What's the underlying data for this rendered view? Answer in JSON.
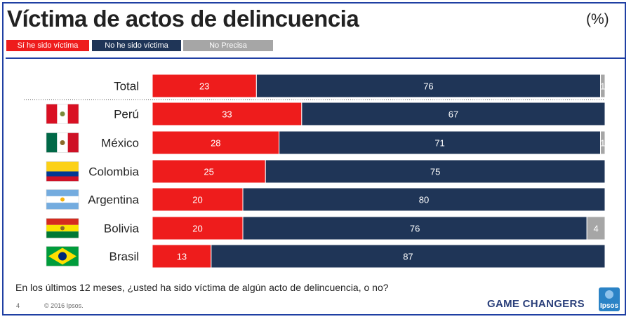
{
  "header": {
    "title": "Víctima de actos de delincuencia",
    "unit": "(%)"
  },
  "legend": [
    {
      "label": "Sí he sido víctima",
      "color": "#ee1c1c"
    },
    {
      "label": "No he sido víctima",
      "color": "#1f3557"
    },
    {
      "label": "No Precisa",
      "color": "#a6a6a6"
    }
  ],
  "chart_data": {
    "type": "bar",
    "orientation": "horizontal",
    "stacked": true,
    "categories": [
      "Total",
      "Perú",
      "México",
      "Colombia",
      "Argentina",
      "Bolivia",
      "Brasil"
    ],
    "series": [
      {
        "name": "Sí he sido víctima",
        "color": "#ee1c1c",
        "values": [
          23,
          33,
          28,
          25,
          20,
          20,
          13
        ]
      },
      {
        "name": "No he sido víctima",
        "color": "#1f3557",
        "values": [
          76,
          67,
          71,
          75,
          80,
          76,
          87
        ]
      },
      {
        "name": "No Precisa",
        "color": "#a6a6a6",
        "values": [
          1,
          0,
          1,
          0,
          0,
          4,
          0
        ]
      }
    ],
    "xlim": [
      0,
      100
    ],
    "flags": [
      "",
      "peru-flag",
      "mexico-flag",
      "colombia-flag",
      "argentina-flag",
      "bolivia-flag",
      "brazil-flag"
    ]
  },
  "footer": {
    "question": "En los últimos 12 meses, ¿usted ha sido víctima de algún acto de delincuencia, o no?",
    "page": "4",
    "copyright": "© 2016 Ipsos.",
    "tagline": "GAME CHANGERS",
    "logo_text": "Ipsos"
  }
}
